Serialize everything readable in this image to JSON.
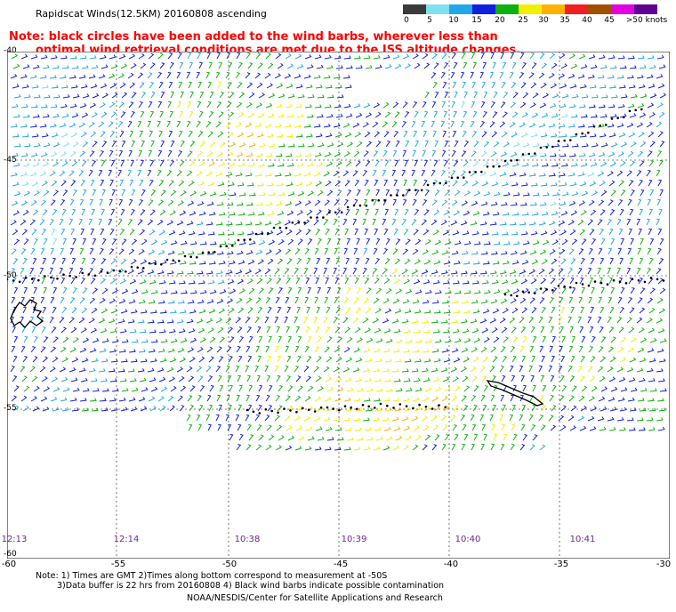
{
  "header": {
    "title": "Rapidscat Winds(12.5KM) 20160808 ascending",
    "note_line1": "Note: black circles have been added to the wind barbs, wherever less than",
    "note_line2": "optimal wind retrieval conditions are met due to the ISS altitude changes."
  },
  "legend": {
    "labels": [
      "0",
      "5",
      "10",
      "15",
      "20",
      "25",
      "30",
      "35",
      "40",
      "45",
      ">50 knots"
    ],
    "colors": [
      "#3a3a3a",
      "#7fe0f0",
      "#20a8e8",
      "#1020e0",
      "#10b010",
      "#f0f000",
      "#ffb000",
      "#f02020",
      "#a05000",
      "#e000e0",
      "#600090"
    ]
  },
  "map": {
    "lat_labels": [
      "-40",
      "-45",
      "-50",
      "-55",
      "-60"
    ],
    "lon_labels": [
      "-60",
      "-55",
      "-50",
      "-45",
      "-40",
      "-35",
      "-30"
    ],
    "time_labels": [
      "12:13",
      "12:14",
      "10:38",
      "10:39",
      "10:40",
      "10:41"
    ]
  },
  "footer": {
    "line1": "Note: 1) Times are GMT 2)Times along bottom correspond to measurement at -50S",
    "line2": "3)Data buffer is 22 hrs from 20160808 4) Black wind barbs indicate possible contamination",
    "line3": "NOAA/NESDIS/Center for Satellite Applications and Research"
  }
}
